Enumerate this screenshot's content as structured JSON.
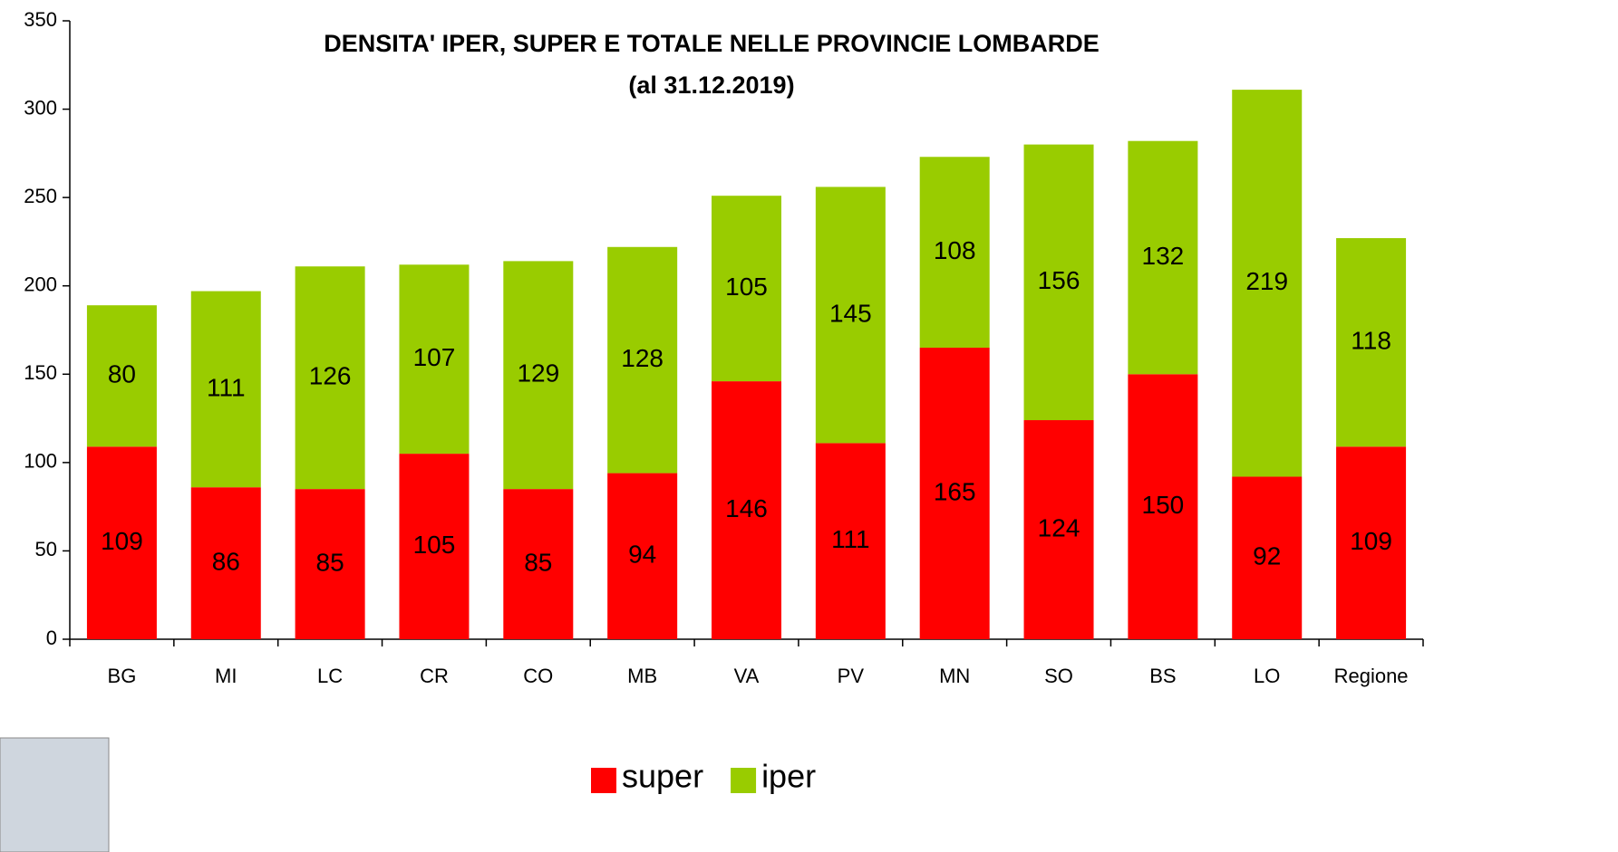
{
  "chart_data": {
    "type": "stacked_bar",
    "title": "DENSITA' IPER, SUPER E TOTALE NELLE PROVINCIE LOMBARDE",
    "subtitle": "(al 31.12.2019)",
    "categories": [
      "BG",
      "MI",
      "LC",
      "CR",
      "CO",
      "MB",
      "VA",
      "PV",
      "MN",
      "SO",
      "BS",
      "LO",
      "Regione"
    ],
    "series": [
      {
        "name": "super",
        "color": "#ff0000",
        "values": [
          109,
          86,
          85,
          105,
          85,
          94,
          146,
          111,
          165,
          124,
          150,
          92,
          109
        ]
      },
      {
        "name": "iper",
        "color": "#99cc00",
        "values": [
          80,
          111,
          126,
          107,
          129,
          128,
          105,
          145,
          108,
          156,
          132,
          219,
          118
        ]
      }
    ],
    "ylim": [
      0,
      350
    ],
    "yticks": [
      0,
      50,
      100,
      150,
      200,
      250,
      300,
      350
    ],
    "legend": "bottom"
  }
}
